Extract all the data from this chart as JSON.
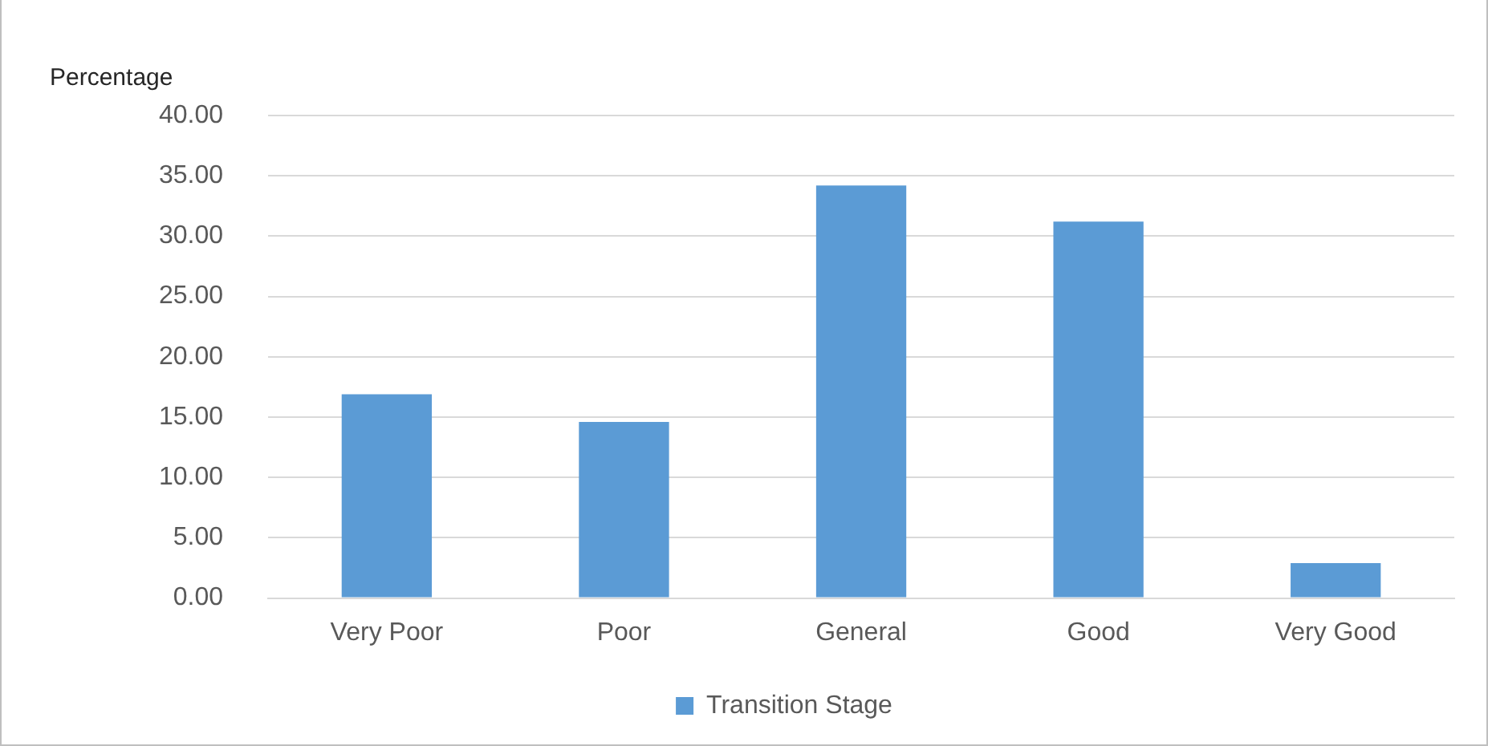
{
  "chart_data": {
    "type": "bar",
    "ylabel": "Percentage",
    "categories": [
      "Very Poor",
      "Poor",
      "General",
      "Good",
      "Very Good"
    ],
    "series": [
      {
        "name": "Transition Stage",
        "color": "#5b9bd5",
        "values": [
          16.9,
          14.6,
          34.2,
          31.2,
          2.9
        ]
      }
    ],
    "ylim": [
      0,
      40
    ],
    "yticks": [
      {
        "value": 0,
        "label": "0.00"
      },
      {
        "value": 5,
        "label": "5.00"
      },
      {
        "value": 10,
        "label": "10.00"
      },
      {
        "value": 15,
        "label": "15.00"
      },
      {
        "value": 20,
        "label": "20.00"
      },
      {
        "value": 25,
        "label": "25.00"
      },
      {
        "value": 30,
        "label": "30.00"
      },
      {
        "value": 35,
        "label": "35.00"
      },
      {
        "value": 40,
        "label": "40.00"
      }
    ],
    "grid": "y",
    "legend": "bottom"
  }
}
